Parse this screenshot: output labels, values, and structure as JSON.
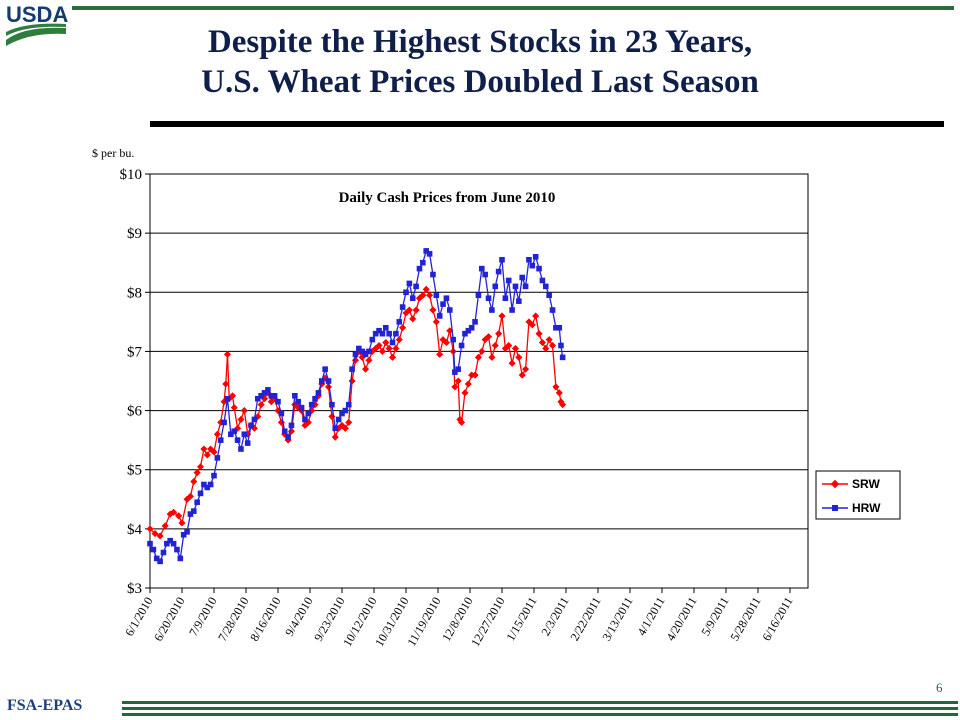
{
  "header": {
    "logo_text": "USDA",
    "title_line1": "Despite the Highest Stocks in 23 Years,",
    "title_line2": "U.S. Wheat Prices Doubled Last  Season"
  },
  "footer": {
    "label": "FSA-EPAS",
    "page_number": "6"
  },
  "colors": {
    "srw": "#ff0000",
    "hrw": "#2323d6",
    "green": "#1d6b3c",
    "navy": "#0f1f4a"
  },
  "chart_data": {
    "type": "line",
    "title": "Daily Cash Prices  from June 2010",
    "ylabel": "$ per bu.",
    "ylim": [
      3,
      10
    ],
    "y_ticks": [
      "$3",
      "$4",
      "$5",
      "$6",
      "$7",
      "$8",
      "$9",
      "$10"
    ],
    "x_ticks": [
      "6/1/2010",
      "6/20/2010",
      "7/9/2010",
      "7/28/2010",
      "8/16/2010",
      "9/4/2010",
      "9/23/2010",
      "10/12/2010",
      "10/31/2010",
      "11/19/2010",
      "12/8/2010",
      "12/27/2010",
      "1/15/2011",
      "2/3/2011",
      "2/22/2011",
      "3/13/2011",
      "4/1/2011",
      "4/20/2011",
      "5/9/2011",
      "5/28/2011",
      "6/16/2011"
    ],
    "grid": true,
    "legend": "right",
    "x_day_step": 19,
    "series": [
      {
        "name": "SRW",
        "marker": "diamond",
        "points": [
          [
            0,
            4.0
          ],
          [
            3,
            3.92
          ],
          [
            6,
            3.88
          ],
          [
            9,
            4.05
          ],
          [
            12,
            4.25
          ],
          [
            14,
            4.28
          ],
          [
            17,
            4.22
          ],
          [
            19,
            4.1
          ],
          [
            22,
            4.5
          ],
          [
            24,
            4.55
          ],
          [
            26,
            4.8
          ],
          [
            28,
            4.95
          ],
          [
            30,
            5.05
          ],
          [
            32,
            5.35
          ],
          [
            34,
            5.25
          ],
          [
            36,
            5.35
          ],
          [
            38,
            5.3
          ],
          [
            40,
            5.6
          ],
          [
            42,
            5.8
          ],
          [
            44,
            6.15
          ],
          [
            45,
            6.45
          ],
          [
            46,
            6.95
          ],
          [
            47,
            6.2
          ],
          [
            49,
            6.25
          ],
          [
            50,
            6.05
          ],
          [
            52,
            5.7
          ],
          [
            54,
            5.85
          ],
          [
            56,
            6.0
          ],
          [
            58,
            5.6
          ],
          [
            60,
            5.75
          ],
          [
            62,
            5.7
          ],
          [
            64,
            5.9
          ],
          [
            66,
            6.1
          ],
          [
            68,
            6.2
          ],
          [
            70,
            6.3
          ],
          [
            72,
            6.15
          ],
          [
            74,
            6.2
          ],
          [
            76,
            6.0
          ],
          [
            78,
            5.8
          ],
          [
            80,
            5.6
          ],
          [
            82,
            5.5
          ],
          [
            84,
            5.65
          ],
          [
            86,
            6.1
          ],
          [
            88,
            6.05
          ],
          [
            90,
            6.0
          ],
          [
            92,
            5.75
          ],
          [
            94,
            5.8
          ],
          [
            96,
            6.0
          ],
          [
            98,
            6.1
          ],
          [
            100,
            6.25
          ],
          [
            102,
            6.45
          ],
          [
            104,
            6.55
          ],
          [
            106,
            6.4
          ],
          [
            108,
            5.9
          ],
          [
            110,
            5.55
          ],
          [
            112,
            5.7
          ],
          [
            114,
            5.75
          ],
          [
            116,
            5.7
          ],
          [
            118,
            5.8
          ],
          [
            120,
            6.5
          ],
          [
            122,
            6.85
          ],
          [
            124,
            7.0
          ],
          [
            126,
            6.9
          ],
          [
            128,
            6.7
          ],
          [
            130,
            6.85
          ],
          [
            132,
            7.0
          ],
          [
            134,
            7.05
          ],
          [
            136,
            7.1
          ],
          [
            138,
            7.0
          ],
          [
            140,
            7.15
          ],
          [
            142,
            7.05
          ],
          [
            144,
            6.9
          ],
          [
            146,
            7.05
          ],
          [
            148,
            7.2
          ],
          [
            150,
            7.4
          ],
          [
            152,
            7.65
          ],
          [
            154,
            7.7
          ],
          [
            156,
            7.55
          ],
          [
            158,
            7.7
          ],
          [
            160,
            7.9
          ],
          [
            162,
            7.95
          ],
          [
            164,
            8.05
          ],
          [
            166,
            7.95
          ],
          [
            168,
            7.7
          ],
          [
            170,
            7.5
          ],
          [
            172,
            6.95
          ],
          [
            174,
            7.2
          ],
          [
            176,
            7.15
          ],
          [
            178,
            7.35
          ],
          [
            180,
            7.0
          ],
          [
            181,
            6.4
          ],
          [
            183,
            6.5
          ],
          [
            184,
            5.85
          ],
          [
            185,
            5.8
          ],
          [
            187,
            6.3
          ],
          [
            189,
            6.45
          ],
          [
            191,
            6.6
          ],
          [
            193,
            6.6
          ],
          [
            195,
            6.9
          ],
          [
            197,
            7.0
          ],
          [
            199,
            7.2
          ],
          [
            201,
            7.25
          ],
          [
            203,
            6.9
          ],
          [
            205,
            7.1
          ],
          [
            207,
            7.3
          ],
          [
            209,
            7.6
          ],
          [
            211,
            7.05
          ],
          [
            213,
            7.1
          ],
          [
            215,
            6.8
          ],
          [
            217,
            7.05
          ],
          [
            219,
            6.9
          ],
          [
            221,
            6.6
          ],
          [
            223,
            6.7
          ],
          [
            225,
            7.5
          ],
          [
            227,
            7.45
          ],
          [
            229,
            7.6
          ],
          [
            231,
            7.3
          ],
          [
            233,
            7.15
          ],
          [
            235,
            7.05
          ],
          [
            237,
            7.2
          ],
          [
            239,
            7.1
          ],
          [
            241,
            6.4
          ],
          [
            243,
            6.3
          ],
          [
            244,
            6.15
          ],
          [
            245,
            6.1
          ]
        ]
      },
      {
        "name": "HRW",
        "marker": "square",
        "points": [
          [
            0,
            3.75
          ],
          [
            2,
            3.65
          ],
          [
            4,
            3.5
          ],
          [
            6,
            3.45
          ],
          [
            8,
            3.6
          ],
          [
            10,
            3.75
          ],
          [
            12,
            3.8
          ],
          [
            14,
            3.75
          ],
          [
            16,
            3.65
          ],
          [
            18,
            3.5
          ],
          [
            20,
            3.9
          ],
          [
            22,
            3.95
          ],
          [
            24,
            4.25
          ],
          [
            26,
            4.3
          ],
          [
            28,
            4.45
          ],
          [
            30,
            4.6
          ],
          [
            32,
            4.75
          ],
          [
            34,
            4.7
          ],
          [
            36,
            4.75
          ],
          [
            38,
            4.9
          ],
          [
            40,
            5.2
          ],
          [
            42,
            5.5
          ],
          [
            44,
            5.8
          ],
          [
            46,
            6.2
          ],
          [
            48,
            5.6
          ],
          [
            50,
            5.65
          ],
          [
            52,
            5.5
          ],
          [
            54,
            5.35
          ],
          [
            56,
            5.6
          ],
          [
            58,
            5.45
          ],
          [
            60,
            5.75
          ],
          [
            62,
            5.85
          ],
          [
            64,
            6.2
          ],
          [
            66,
            6.25
          ],
          [
            68,
            6.3
          ],
          [
            70,
            6.35
          ],
          [
            72,
            6.25
          ],
          [
            74,
            6.25
          ],
          [
            76,
            6.15
          ],
          [
            78,
            5.95
          ],
          [
            80,
            5.65
          ],
          [
            82,
            5.55
          ],
          [
            84,
            5.75
          ],
          [
            86,
            6.25
          ],
          [
            88,
            6.15
          ],
          [
            90,
            6.05
          ],
          [
            92,
            5.85
          ],
          [
            94,
            5.95
          ],
          [
            96,
            6.1
          ],
          [
            98,
            6.2
          ],
          [
            100,
            6.3
          ],
          [
            102,
            6.5
          ],
          [
            104,
            6.7
          ],
          [
            106,
            6.5
          ],
          [
            108,
            6.1
          ],
          [
            110,
            5.7
          ],
          [
            112,
            5.85
          ],
          [
            114,
            5.95
          ],
          [
            116,
            6.0
          ],
          [
            118,
            6.1
          ],
          [
            120,
            6.7
          ],
          [
            122,
            6.95
          ],
          [
            124,
            7.05
          ],
          [
            126,
            7.0
          ],
          [
            128,
            6.95
          ],
          [
            130,
            7.0
          ],
          [
            132,
            7.2
          ],
          [
            134,
            7.3
          ],
          [
            136,
            7.35
          ],
          [
            138,
            7.3
          ],
          [
            140,
            7.4
          ],
          [
            142,
            7.3
          ],
          [
            144,
            7.15
          ],
          [
            146,
            7.3
          ],
          [
            148,
            7.5
          ],
          [
            150,
            7.75
          ],
          [
            152,
            8.0
          ],
          [
            154,
            8.15
          ],
          [
            156,
            7.9
          ],
          [
            158,
            8.1
          ],
          [
            160,
            8.4
          ],
          [
            162,
            8.5
          ],
          [
            164,
            8.7
          ],
          [
            166,
            8.65
          ],
          [
            168,
            8.3
          ],
          [
            170,
            7.95
          ],
          [
            172,
            7.6
          ],
          [
            174,
            7.8
          ],
          [
            176,
            7.9
          ],
          [
            178,
            7.7
          ],
          [
            180,
            7.2
          ],
          [
            181,
            6.65
          ],
          [
            183,
            6.7
          ],
          [
            185,
            7.1
          ],
          [
            187,
            7.3
          ],
          [
            189,
            7.35
          ],
          [
            191,
            7.4
          ],
          [
            193,
            7.5
          ],
          [
            195,
            7.95
          ],
          [
            197,
            8.4
          ],
          [
            199,
            8.3
          ],
          [
            201,
            7.9
          ],
          [
            203,
            7.7
          ],
          [
            205,
            8.1
          ],
          [
            207,
            8.35
          ],
          [
            209,
            8.55
          ],
          [
            211,
            7.9
          ],
          [
            213,
            8.2
          ],
          [
            215,
            7.7
          ],
          [
            217,
            8.1
          ],
          [
            219,
            7.85
          ],
          [
            221,
            8.25
          ],
          [
            223,
            8.1
          ],
          [
            225,
            8.55
          ],
          [
            227,
            8.45
          ],
          [
            229,
            8.6
          ],
          [
            231,
            8.4
          ],
          [
            233,
            8.2
          ],
          [
            235,
            8.1
          ],
          [
            237,
            7.95
          ],
          [
            239,
            7.7
          ],
          [
            241,
            7.4
          ],
          [
            243,
            7.4
          ],
          [
            244,
            7.1
          ],
          [
            245,
            6.9
          ]
        ]
      }
    ]
  }
}
